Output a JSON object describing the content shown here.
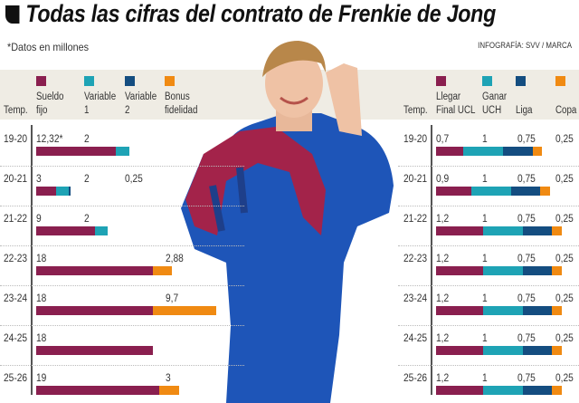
{
  "title": "Todas las cifras del contrato de Frenkie de Jong",
  "note": "*Datos en millones",
  "credit": "INFOGRAFÍA: SVV / MARCA",
  "colors": {
    "burgundy": "#8a1f4f",
    "teal": "#1ea3b5",
    "navy": "#144d80",
    "orange": "#f08a12"
  },
  "chart_data": [
    {
      "type": "bar",
      "stacked": true,
      "orientation": "horizontal",
      "row_header": "Temp.",
      "categories": [
        "19-20",
        "20-21",
        "21-22",
        "22-23",
        "23-24",
        "24-25",
        "25-26"
      ],
      "series": [
        {
          "name": "Sueldo fijo",
          "legend_lines": [
            "Sueldo",
            "fijo"
          ],
          "color": "#8a1f4f",
          "values": [
            12.32,
            3,
            9,
            18,
            18,
            18,
            19
          ],
          "labels": [
            "12,32*",
            "3",
            "9",
            "18",
            "18",
            "18",
            "19"
          ]
        },
        {
          "name": "Variable 1",
          "legend_lines": [
            "Variable",
            "1"
          ],
          "color": "#1ea3b5",
          "values": [
            2,
            2,
            2,
            null,
            null,
            null,
            null
          ],
          "labels": [
            "2",
            "2",
            "2",
            "",
            "",
            "",
            ""
          ]
        },
        {
          "name": "Variable 2",
          "legend_lines": [
            "Variable",
            "2"
          ],
          "color": "#144d80",
          "values": [
            null,
            0.25,
            null,
            null,
            null,
            null,
            null
          ],
          "labels": [
            "",
            "0,25",
            "",
            "",
            "",
            "",
            ""
          ]
        },
        {
          "name": "Bonus fidelidad",
          "legend_lines": [
            "Bonus",
            "fidelidad"
          ],
          "color": "#f08a12",
          "values": [
            null,
            null,
            null,
            2.88,
            9.7,
            null,
            3
          ],
          "labels": [
            "",
            "",
            "",
            "2,88",
            "9,7",
            "",
            "3"
          ]
        }
      ]
    },
    {
      "type": "bar",
      "stacked": true,
      "orientation": "horizontal",
      "row_header": "Temp.",
      "categories": [
        "19-20",
        "20-21",
        "21-22",
        "22-23",
        "23-24",
        "24-25",
        "25-26"
      ],
      "series": [
        {
          "name": "Llegar Final UCL",
          "legend_lines": [
            "Llegar",
            "Final UCL"
          ],
          "color": "#8a1f4f",
          "values": [
            0.7,
            0.9,
            1.2,
            1.2,
            1.2,
            1.2,
            1.2
          ],
          "labels": [
            "0,7",
            "0,9",
            "1,2",
            "1,2",
            "1,2",
            "1,2",
            "1,2"
          ]
        },
        {
          "name": "Ganar UCH",
          "legend_lines": [
            "Ganar",
            "UCH"
          ],
          "color": "#1ea3b5",
          "values": [
            1,
            1,
            1,
            1,
            1,
            1,
            1
          ],
          "labels": [
            "1",
            "1",
            "1",
            "1",
            "1",
            "1",
            "1"
          ]
        },
        {
          "name": "Liga",
          "legend_lines": [
            "",
            "Liga"
          ],
          "color": "#144d80",
          "values": [
            0.75,
            0.75,
            0.75,
            0.75,
            0.75,
            0.75,
            0.75
          ],
          "labels": [
            "0,75",
            "0,75",
            "0,75",
            "0,75",
            "0,75",
            "0,75",
            "0,75"
          ]
        },
        {
          "name": "Copa",
          "legend_lines": [
            "",
            "Copa"
          ],
          "color": "#f08a12",
          "values": [
            0.25,
            0.25,
            0.25,
            0.25,
            0.25,
            0.25,
            0.25
          ],
          "labels": [
            "0,25",
            "0,25",
            "0,25",
            "0,25",
            "0,25",
            "0,25",
            "0,25"
          ]
        }
      ]
    }
  ]
}
